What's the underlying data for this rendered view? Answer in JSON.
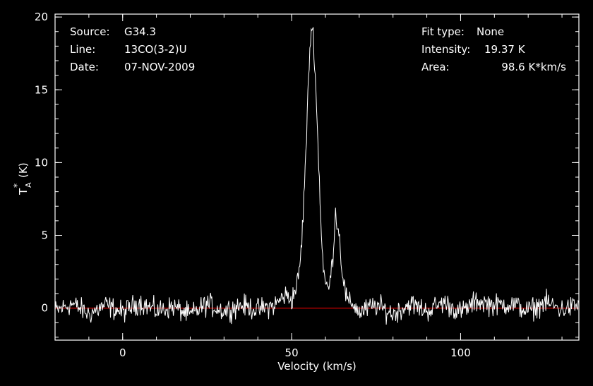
{
  "info": {
    "source_label": "Source:",
    "source_value": "G34.3",
    "line_label": "Line:",
    "line_value": "13CO(3-2)U",
    "date_label": "Date:",
    "date_value": "07-NOV-2009",
    "fit_label": "Fit type:",
    "fit_value": "None",
    "intensity_label": "Intensity:",
    "intensity_value": "19.37 K",
    "area_label": "Area:",
    "area_value": "98.6 K*km/s"
  },
  "chart_data": {
    "type": "line",
    "xlabel": "Velocity (km/s)",
    "ylabel_main": "T",
    "ylabel_sup": "*",
    "ylabel_sub": "A",
    "ylabel_unit": "(K)",
    "xlim": [
      -20,
      135
    ],
    "ylim": [
      -2.2,
      20.2
    ],
    "xticks": [
      0,
      50,
      100
    ],
    "yticks": [
      0,
      5,
      10,
      15,
      20
    ],
    "x_minor_step": 10,
    "y_minor_step": 1,
    "grid": false,
    "colors": {
      "spectrum": "#ffffff",
      "baseline": "#d00000",
      "axes": "#ffffff"
    },
    "baseline": 0,
    "series": [
      {
        "x": [
          -20,
          -15,
          -10,
          -5,
          0,
          5,
          10,
          15,
          20,
          25,
          30,
          35,
          40,
          45,
          48,
          50,
          51,
          52,
          53,
          54,
          55,
          55.5,
          56,
          56.5,
          57,
          58,
          59,
          60,
          61,
          62,
          63,
          64,
          65,
          66,
          67,
          68,
          70,
          75,
          80,
          85,
          90,
          95,
          100,
          105,
          110,
          115,
          120,
          125,
          130,
          135
        ],
        "y": [
          -0.2,
          0.3,
          -0.4,
          0.2,
          -0.3,
          0.4,
          -0.2,
          0.1,
          -0.5,
          0.3,
          -0.2,
          0.2,
          -0.1,
          0.2,
          0.9,
          0.6,
          1.2,
          2.0,
          4.5,
          9.5,
          15.5,
          18.5,
          19.3,
          18.6,
          16.0,
          10.0,
          4.0,
          1.6,
          1.3,
          3.0,
          6.6,
          5.2,
          2.5,
          0.9,
          0.2,
          0.4,
          -0.3,
          0.2,
          -0.4,
          0.3,
          -0.2,
          0.4,
          -0.3,
          0.5,
          0.2,
          0.3,
          -0.2,
          0.4,
          -0.1,
          0.2
        ]
      }
    ]
  }
}
